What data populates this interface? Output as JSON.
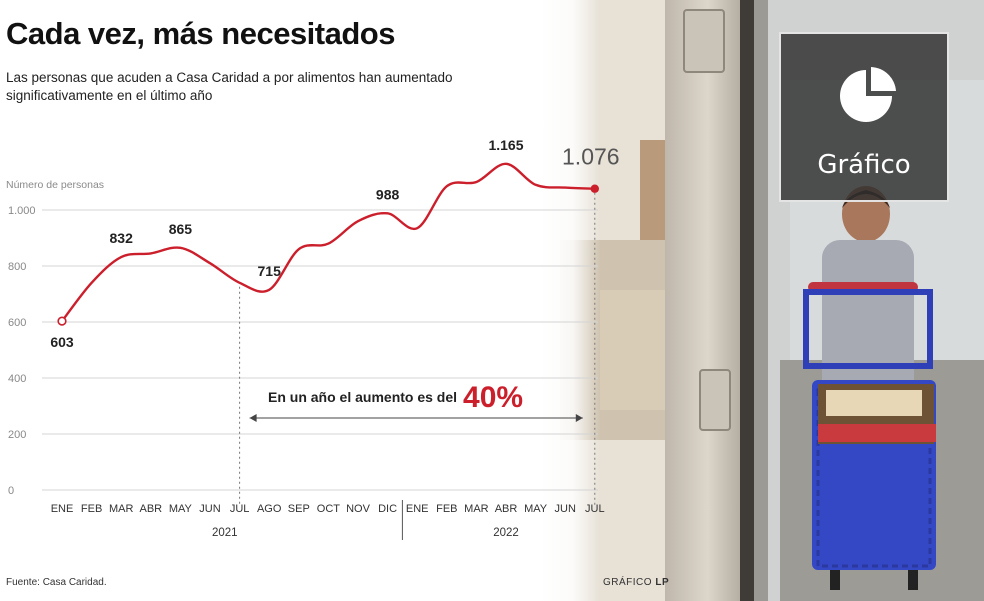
{
  "title": "Cada vez, más necesitados",
  "subtitle": "Las personas que acuden a Casa Caridad a por alimentos han aumentado significativamente en el último año",
  "source": "Fuente: Casa Caridad.",
  "credit_prefix": "GRÁFICO",
  "credit_brand": "LP",
  "badge_label": "Gráfico",
  "badge_icon": "pie-chart-icon",
  "annotation": {
    "text": "En un año el aumento es del",
    "highlight": "40%"
  },
  "colors": {
    "line": "#cc1f2c",
    "highlight": "#cc1f2c",
    "grid": "#d4d4d4",
    "text": "#222222"
  },
  "chart_data": {
    "type": "line",
    "title": "Cada vez, más necesitados",
    "subtitle": "Las personas que acuden a Casa Caridad a por alimentos han aumentado significativamente en el último año",
    "ylabel": "Número de personas",
    "xlabel": "",
    "ylim": [
      0,
      1000
    ],
    "yticks": [
      0,
      200,
      400,
      600,
      800,
      1000
    ],
    "ytick_labels": [
      "0",
      "200",
      "400",
      "600",
      "800",
      "1.000"
    ],
    "grid": true,
    "categories": [
      "ENE",
      "FEB",
      "MAR",
      "ABR",
      "MAY",
      "JUN",
      "JUL",
      "AGO",
      "SEP",
      "OCT",
      "NOV",
      "DIC",
      "ENE",
      "FEB",
      "MAR",
      "ABR",
      "MAY",
      "JUN",
      "JUL"
    ],
    "year_groups": [
      {
        "label": "2021",
        "start": 0,
        "end": 11
      },
      {
        "label": "2022",
        "start": 12,
        "end": 18
      }
    ],
    "series": [
      {
        "values": [
          603,
          740,
          832,
          845,
          865,
          810,
          740,
          715,
          860,
          880,
          960,
          988,
          935,
          1085,
          1100,
          1165,
          1090,
          1080,
          1076
        ]
      }
    ],
    "data_labels": [
      {
        "index": 0,
        "text": "603",
        "pos": "below"
      },
      {
        "index": 2,
        "text": "832",
        "pos": "above"
      },
      {
        "index": 4,
        "text": "865",
        "pos": "above"
      },
      {
        "index": 7,
        "text": "715",
        "pos": "above"
      },
      {
        "index": 11,
        "text": "988",
        "pos": "above"
      },
      {
        "index": 15,
        "text": "1.165",
        "pos": "above"
      },
      {
        "index": 18,
        "text": "1.076",
        "pos": "above-large"
      }
    ],
    "reference_lines": [
      6,
      18
    ]
  }
}
